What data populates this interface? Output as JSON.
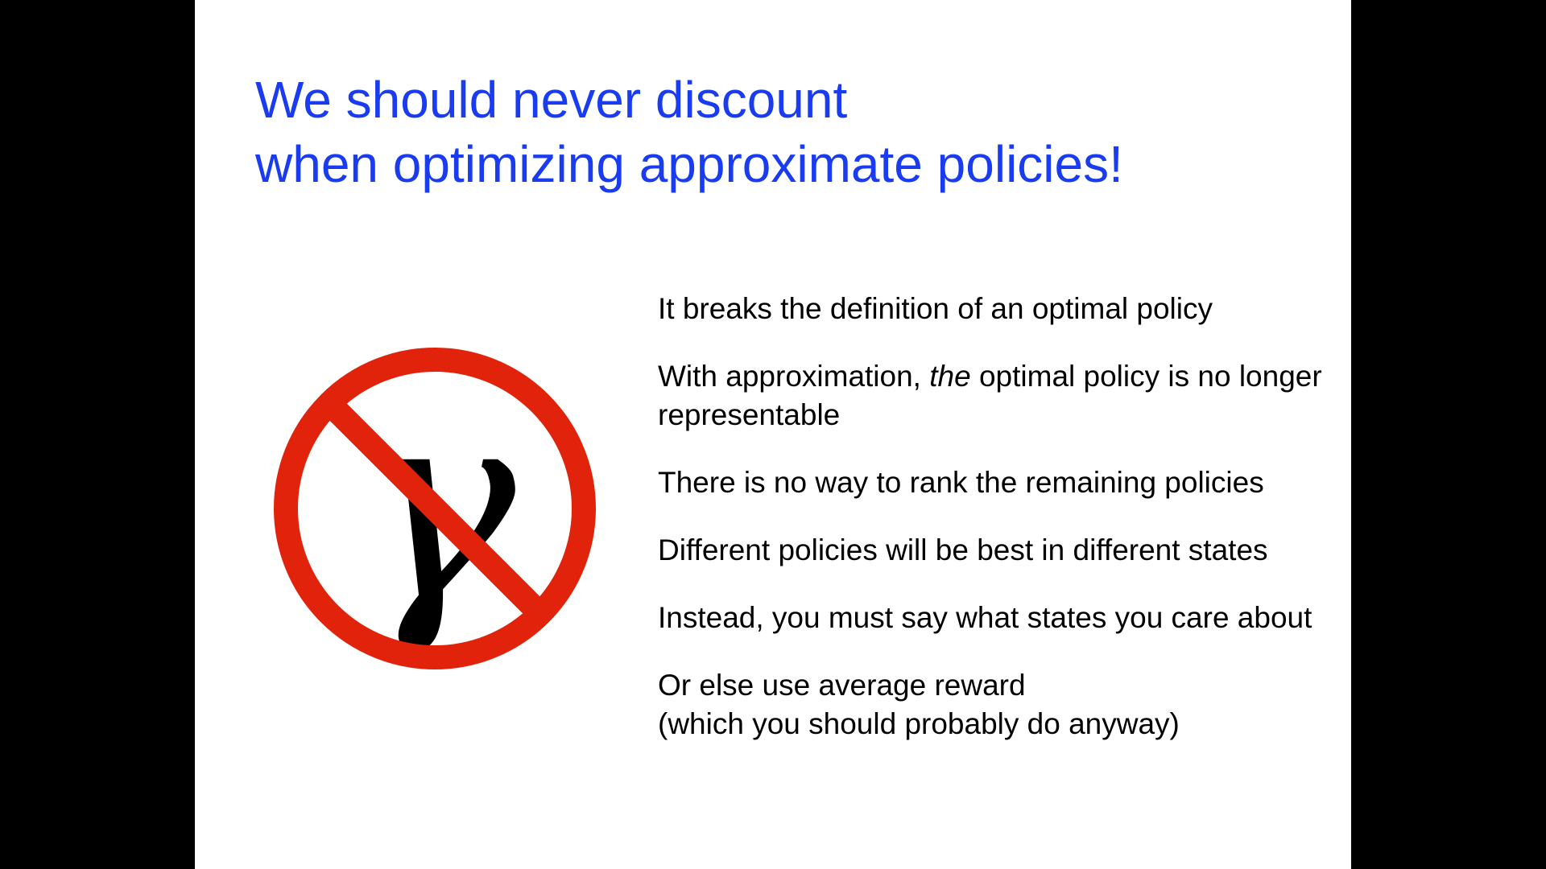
{
  "slide": {
    "title_lines": [
      "We should never discount",
      "when optimizing approximate policies!"
    ],
    "symbol": {
      "glyph": "γ",
      "icon": "no-gamma-prohibition-icon",
      "ring_color": "#e0230a",
      "glyph_color": "#000000"
    },
    "bullets": [
      {
        "text": "It breaks the definition of an optimal policy"
      },
      {
        "pre": "With approximation, ",
        "emph": "the",
        "post": " optimal policy is no longer representable"
      },
      {
        "text": "There is no way to rank the remaining policies"
      },
      {
        "text": "Different policies will be best in different states"
      },
      {
        "text": "Instead, you must say what states you care about"
      },
      {
        "line1": "Or else use average reward",
        "line2": "(which you should probably do anyway)"
      }
    ],
    "colors": {
      "title": "#1a3cf0",
      "background": "#ffffff",
      "frame": "#000000"
    }
  }
}
